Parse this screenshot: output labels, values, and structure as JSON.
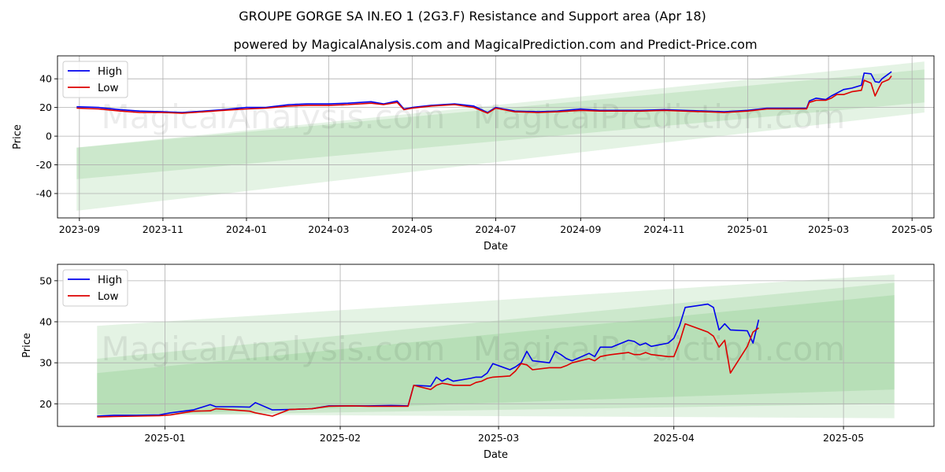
{
  "title": "GROUPE GORGE SA IN.EO 1 (2G3.F) Resistance and Support area (Apr 18)",
  "subtitle": "powered by MagicalAnalysis.com and MagicalPrediction.com and Predict-Price.com",
  "watermarks": [
    "MagicalAnalysis.com",
    "MagicalPrediction.com"
  ],
  "colors": {
    "high": "#0000ee",
    "low": "#dd0000",
    "band": "#2ca02c",
    "grid": "#b0b0b0"
  },
  "chart_data": [
    {
      "type": "line",
      "xlabel": "Date",
      "ylabel": "Price",
      "xlim": [
        "2023-08-16",
        "2025-05-17"
      ],
      "ylim": [
        -57,
        56
      ],
      "xticks": [
        "2023-09",
        "2023-11",
        "2024-01",
        "2024-03",
        "2024-05",
        "2024-07",
        "2024-09",
        "2024-11",
        "2025-01",
        "2025-03",
        "2025-05"
      ],
      "xtick_dates": [
        "2023-09-01",
        "2023-11-01",
        "2024-01-01",
        "2024-03-01",
        "2024-05-01",
        "2024-07-01",
        "2024-09-01",
        "2024-11-01",
        "2025-01-01",
        "2025-03-01",
        "2025-05-01"
      ],
      "yticks": [
        -40,
        -20,
        0,
        20,
        40
      ],
      "grid": true,
      "legend": "top-left",
      "bands": [
        {
          "x": [
            "2023-08-30",
            "2025-05-10"
          ],
          "lower": [
            -52,
            16.5
          ],
          "upper": [
            -8,
            52
          ]
        },
        {
          "x": [
            "2023-08-30",
            "2025-05-10"
          ],
          "lower": [
            -30,
            23.5
          ],
          "upper": [
            -8,
            46.5
          ]
        }
      ],
      "series": [
        {
          "name": "High",
          "x": [
            "2023-08-30",
            "2023-09-15",
            "2023-10-01",
            "2023-10-15",
            "2023-11-01",
            "2023-11-15",
            "2023-12-01",
            "2023-12-15",
            "2024-01-01",
            "2024-01-15",
            "2024-02-01",
            "2024-02-15",
            "2024-03-01",
            "2024-03-15",
            "2024-04-01",
            "2024-04-10",
            "2024-04-20",
            "2024-04-25",
            "2024-05-01",
            "2024-05-15",
            "2024-06-01",
            "2024-06-15",
            "2024-06-25",
            "2024-07-01",
            "2024-07-15",
            "2024-08-01",
            "2024-08-15",
            "2024-09-01",
            "2024-09-15",
            "2024-10-01",
            "2024-10-15",
            "2024-11-01",
            "2024-11-15",
            "2024-12-01",
            "2024-12-15",
            "2025-01-01",
            "2025-01-15",
            "2025-02-01",
            "2025-02-13",
            "2025-02-15",
            "2025-02-20",
            "2025-02-27",
            "2025-03-03",
            "2025-03-07",
            "2025-03-12",
            "2025-03-18",
            "2025-03-25",
            "2025-03-27",
            "2025-04-01",
            "2025-04-04",
            "2025-04-07",
            "2025-04-09",
            "2025-04-14",
            "2025-04-16"
          ],
          "y": [
            20.5,
            20,
            18.5,
            17.5,
            17,
            16.5,
            17.5,
            18.5,
            20,
            20,
            22,
            22.5,
            22.5,
            23,
            24,
            22.5,
            24.5,
            19,
            20,
            21.5,
            22.5,
            21,
            16.5,
            20,
            17.5,
            17,
            17.5,
            19,
            18,
            18,
            18,
            18.5,
            18,
            17.5,
            17,
            18,
            19.5,
            19.5,
            19.5,
            24.5,
            26.5,
            25.5,
            28,
            30,
            32.5,
            33.5,
            35.5,
            44,
            43.5,
            38,
            37.5,
            40,
            43.5,
            45
          ]
        },
        {
          "name": "Low",
          "x": [
            "2023-08-30",
            "2023-09-15",
            "2023-10-01",
            "2023-10-15",
            "2023-11-01",
            "2023-11-15",
            "2023-12-01",
            "2023-12-15",
            "2024-01-01",
            "2024-01-15",
            "2024-02-01",
            "2024-02-15",
            "2024-03-01",
            "2024-03-15",
            "2024-04-01",
            "2024-04-10",
            "2024-04-20",
            "2024-04-25",
            "2024-05-01",
            "2024-05-15",
            "2024-06-01",
            "2024-06-15",
            "2024-06-25",
            "2024-07-01",
            "2024-07-15",
            "2024-08-01",
            "2024-08-15",
            "2024-09-01",
            "2024-09-15",
            "2024-10-01",
            "2024-10-15",
            "2024-11-01",
            "2024-11-15",
            "2024-12-01",
            "2024-12-15",
            "2025-01-01",
            "2025-01-15",
            "2025-02-01",
            "2025-02-13",
            "2025-02-15",
            "2025-02-20",
            "2025-02-27",
            "2025-03-03",
            "2025-03-07",
            "2025-03-12",
            "2025-03-18",
            "2025-03-25",
            "2025-03-27",
            "2025-04-01",
            "2025-04-04",
            "2025-04-07",
            "2025-04-09",
            "2025-04-14",
            "2025-04-16"
          ],
          "y": [
            19.5,
            19,
            17.5,
            16.5,
            16.5,
            16,
            17,
            18,
            19,
            19.5,
            21,
            21.5,
            21.5,
            22,
            23,
            22,
            23.5,
            18.5,
            19.5,
            21,
            22,
            20,
            16,
            19.5,
            17,
            16.5,
            17,
            18,
            17.5,
            17.5,
            17.5,
            18,
            17.5,
            17,
            16.5,
            17.5,
            19,
            19,
            19,
            23.5,
            25,
            25,
            26.5,
            29,
            29,
            31,
            32,
            39,
            37,
            28,
            34,
            37.5,
            39.5,
            42
          ]
        }
      ]
    },
    {
      "type": "line",
      "xlabel": "Date",
      "ylabel": "Price",
      "xlim": [
        "2024-12-13",
        "2025-05-17"
      ],
      "ylim": [
        14.5,
        54
      ],
      "xticks": [
        "2025-01",
        "2025-02",
        "2025-03",
        "2025-04",
        "2025-05"
      ],
      "xtick_dates": [
        "2025-01-01",
        "2025-02-01",
        "2025-03-01",
        "2025-04-01",
        "2025-05-01"
      ],
      "yticks": [
        20,
        30,
        40,
        50
      ],
      "grid": true,
      "legend": "top-left",
      "bands": [
        {
          "x": [
            "2024-12-20",
            "2025-05-10"
          ],
          "lower": [
            17.5,
            16.5
          ],
          "upper": [
            39,
            51.5
          ]
        },
        {
          "x": [
            "2024-12-20",
            "2025-05-10"
          ],
          "lower": [
            17,
            23.5
          ],
          "upper": [
            27.5,
            46.5
          ]
        },
        {
          "x": [
            "2024-12-20",
            "2025-05-10"
          ],
          "lower": [
            17,
            20
          ],
          "upper": [
            31,
            49.5
          ]
        }
      ],
      "series": [
        {
          "name": "High",
          "x": [
            "2024-12-20",
            "2024-12-23",
            "2024-12-27",
            "2024-12-31",
            "2025-01-02",
            "2025-01-06",
            "2025-01-09",
            "2025-01-10",
            "2025-01-13",
            "2025-01-16",
            "2025-01-17",
            "2025-01-20",
            "2025-01-23",
            "2025-01-27",
            "2025-01-30",
            "2025-02-03",
            "2025-02-06",
            "2025-02-10",
            "2025-02-13",
            "2025-02-14",
            "2025-02-17",
            "2025-02-18",
            "2025-02-19",
            "2025-02-20",
            "2025-02-21",
            "2025-02-24",
            "2025-02-25",
            "2025-02-26",
            "2025-02-27",
            "2025-02-28",
            "2025-03-03",
            "2025-03-04",
            "2025-03-05",
            "2025-03-06",
            "2025-03-07",
            "2025-03-10",
            "2025-03-11",
            "2025-03-12",
            "2025-03-13",
            "2025-03-14",
            "2025-03-17",
            "2025-03-18",
            "2025-03-19",
            "2025-03-20",
            "2025-03-21",
            "2025-03-24",
            "2025-03-25",
            "2025-03-26",
            "2025-03-27",
            "2025-03-28",
            "2025-03-31",
            "2025-04-01",
            "2025-04-02",
            "2025-04-03",
            "2025-04-07",
            "2025-04-08",
            "2025-04-09",
            "2025-04-10",
            "2025-04-11",
            "2025-04-14",
            "2025-04-15",
            "2025-04-16"
          ],
          "y": [
            17,
            17.2,
            17.2,
            17.3,
            17.8,
            18.5,
            19.8,
            19.3,
            19.3,
            19.2,
            20.3,
            18.5,
            18.6,
            18.8,
            19.5,
            19.5,
            19.5,
            19.6,
            19.5,
            24.5,
            24.3,
            26.5,
            25.5,
            26.2,
            25.5,
            26.2,
            26.5,
            26.5,
            27.5,
            29.8,
            28.3,
            29,
            30,
            32.8,
            30.5,
            30,
            32.8,
            32,
            31,
            30.5,
            32.3,
            31.5,
            33.8,
            33.8,
            33.8,
            35.5,
            35.2,
            34.3,
            34.8,
            34,
            34.8,
            36,
            39,
            43.5,
            44.3,
            43.5,
            38,
            39.5,
            38,
            37.8,
            34.8,
            40.5
          ]
        },
        {
          "name": "Low",
          "x": [
            "2024-12-20",
            "2024-12-23",
            "2024-12-27",
            "2024-12-31",
            "2025-01-02",
            "2025-01-06",
            "2025-01-09",
            "2025-01-10",
            "2025-01-13",
            "2025-01-16",
            "2025-01-17",
            "2025-01-20",
            "2025-01-23",
            "2025-01-27",
            "2025-01-30",
            "2025-02-03",
            "2025-02-06",
            "2025-02-10",
            "2025-02-13",
            "2025-02-14",
            "2025-02-17",
            "2025-02-18",
            "2025-02-19",
            "2025-02-20",
            "2025-02-21",
            "2025-02-24",
            "2025-02-25",
            "2025-02-26",
            "2025-02-27",
            "2025-02-28",
            "2025-03-03",
            "2025-03-04",
            "2025-03-05",
            "2025-03-06",
            "2025-03-07",
            "2025-03-10",
            "2025-03-11",
            "2025-03-12",
            "2025-03-13",
            "2025-03-14",
            "2025-03-17",
            "2025-03-18",
            "2025-03-19",
            "2025-03-20",
            "2025-03-21",
            "2025-03-24",
            "2025-03-25",
            "2025-03-26",
            "2025-03-27",
            "2025-03-28",
            "2025-03-31",
            "2025-04-01",
            "2025-04-02",
            "2025-04-03",
            "2025-04-07",
            "2025-04-08",
            "2025-04-09",
            "2025-04-10",
            "2025-04-11",
            "2025-04-14",
            "2025-04-15",
            "2025-04-16"
          ],
          "y": [
            16.8,
            16.9,
            17,
            17.1,
            17.3,
            18.2,
            18.3,
            18.8,
            18.5,
            18.2,
            17.8,
            17,
            18.6,
            18.8,
            19.4,
            19.5,
            19.4,
            19.4,
            19.4,
            24.5,
            23.5,
            24.5,
            25,
            24.8,
            24.5,
            24.5,
            25.2,
            25.5,
            26.2,
            26.5,
            26.8,
            28,
            29.8,
            29.5,
            28.3,
            28.8,
            28.8,
            28.8,
            29.3,
            30,
            31,
            30.5,
            31.5,
            31.8,
            32,
            32.5,
            32,
            32,
            32.5,
            32,
            31.5,
            31.5,
            35,
            39.5,
            37.5,
            36.5,
            33.8,
            35.5,
            27.5,
            34,
            37.5,
            38.5
          ]
        }
      ]
    }
  ]
}
